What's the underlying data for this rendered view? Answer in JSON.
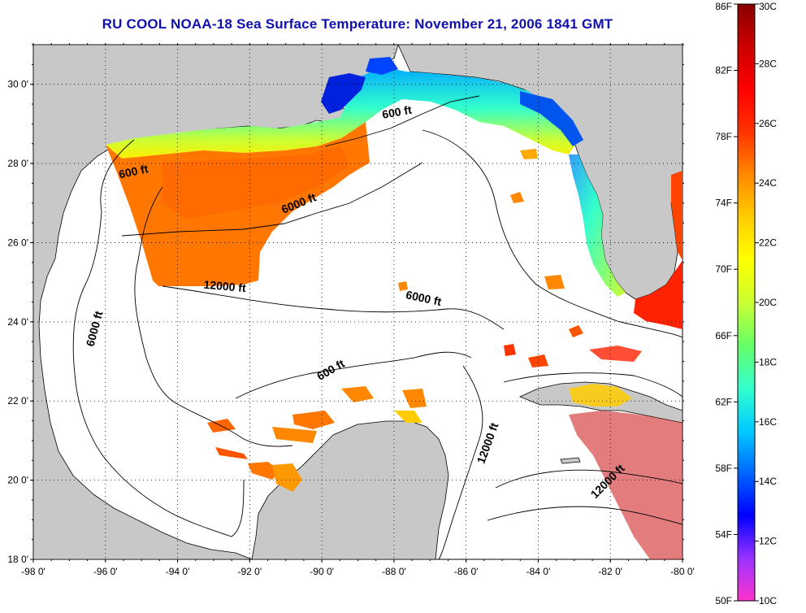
{
  "title": "RU COOL  NOAA-18  Sea Surface Temperature:  November 21, 2006 1841 GMT",
  "map": {
    "lon_ticks": [
      "-98 0'",
      "-96 0'",
      "-94 0'",
      "-92 0'",
      "-90 0'",
      "-88 0'",
      "-86 0'",
      "-84 0'",
      "-82 0'",
      "-80 0'"
    ],
    "lat_ticks": [
      "30 0'",
      "28 0'",
      "26 0'",
      "24 0'",
      "22 0'",
      "20 0'",
      "18 0'"
    ],
    "lon_range": [
      -98,
      -80
    ],
    "lat_range": [
      18,
      31
    ],
    "grid": "dotted",
    "colors": {
      "land": "#c8c8c8",
      "ocean_no_data": "#ffffff",
      "contour": "#000000"
    },
    "contour_labels": [
      {
        "text": "600 ft",
        "lon": -95.2,
        "lat": 27.7
      },
      {
        "text": "600 ft",
        "lon": -87.9,
        "lat": 29.2
      },
      {
        "text": "6000 ft",
        "lon": -90.6,
        "lat": 26.9
      },
      {
        "text": "12000 ft",
        "lon": -92.7,
        "lat": 24.8
      },
      {
        "text": "6000 ft",
        "lon": -87.2,
        "lat": 24.5
      },
      {
        "text": "6000 ft",
        "lon": -96.2,
        "lat": 23.8
      },
      {
        "text": "600 ft",
        "lon": -89.7,
        "lat": 22.7
      },
      {
        "text": "12000 ft",
        "lon": -85.3,
        "lat": 20.9
      },
      {
        "text": "12000 ft",
        "lon": -82.0,
        "lat": 19.9
      }
    ]
  },
  "colorbar": {
    "fahrenheit_ticks": [
      "86F",
      "82F",
      "78F",
      "74F",
      "70F",
      "66F",
      "62F",
      "58F",
      "54F",
      "50F"
    ],
    "celsius_ticks": [
      "30C",
      "28C",
      "26C",
      "24C",
      "22C",
      "20C",
      "18C",
      "16C",
      "14C",
      "12C",
      "10C"
    ],
    "range_c": [
      10,
      30
    ],
    "range_f": [
      50,
      86
    ],
    "colors": [
      "#ff33cc",
      "#9933ff",
      "#0000ff",
      "#0066ff",
      "#00ccff",
      "#33ffcc",
      "#66ff66",
      "#ccff33",
      "#ffff00",
      "#ffcc00",
      "#ff8800",
      "#ff3300",
      "#ff0000",
      "#cc0000",
      "#880000"
    ]
  },
  "sst_regions": [
    {
      "name": "western-gulf-warm",
      "temp_c": 25.5
    },
    {
      "name": "northern-shelf-cool",
      "temp_c": 17
    },
    {
      "name": "mississippi-delta-cold",
      "temp_c": 13
    },
    {
      "name": "florida-west-coast",
      "temp_c": 19.5
    },
    {
      "name": "florida-keys-warm",
      "temp_c": 27.5
    },
    {
      "name": "caribbean-warm",
      "temp_c": 28.5
    },
    {
      "name": "yucatan-scattered",
      "temp_c": 25.5
    }
  ]
}
